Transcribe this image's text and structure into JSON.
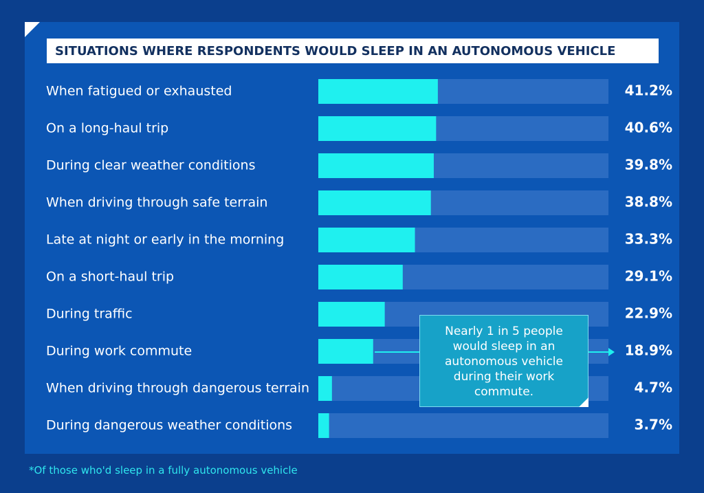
{
  "chart_data": {
    "type": "hbar",
    "title": "SITUATIONS WHERE RESPONDENTS WOULD SLEEP IN AN AUTONOMOUS VEHICLE",
    "categories": [
      "When fatigued or exhausted",
      "On a long-haul trip",
      "During clear weather conditions",
      "When driving through safe terrain",
      "Late at night or early in the morning",
      "On a short-haul trip",
      "During traffic",
      "During work commute",
      "When driving through dangerous terrain",
      "During dangerous weather conditions"
    ],
    "values": [
      41.2,
      40.6,
      39.8,
      38.8,
      33.3,
      29.1,
      22.9,
      18.9,
      4.7,
      3.7
    ],
    "value_labels": [
      "41.2%",
      "40.6%",
      "39.8%",
      "38.8%",
      "33.3%",
      "29.1%",
      "22.9%",
      "18.9%",
      "4.7%",
      "3.7%"
    ],
    "color": "#1ff0ef",
    "track_color": "#2b6cc2",
    "xlim": [
      0,
      100
    ],
    "annotation": "Nearly 1 in 5 people would sleep in an autonomous vehicle during their work commute.",
    "footnote": "*Of those who'd sleep in a fully autonomous vehicle"
  }
}
